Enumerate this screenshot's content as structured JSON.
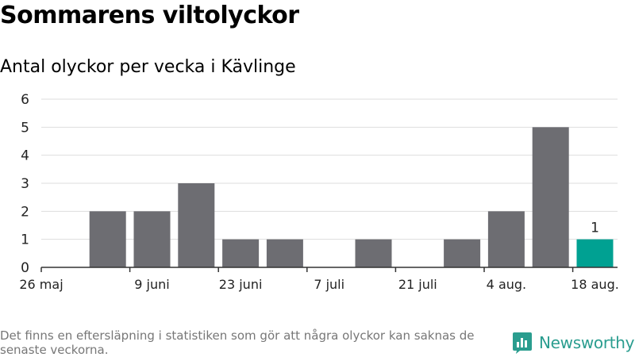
{
  "title": "Sommarens viltolyckor",
  "subtitle": "Antal olyckor per vecka i Kävlinge",
  "footnote": "Det finns en eftersläpning i statistiken som gör att några olyckor kan saknas de senaste veckorna.",
  "brand": {
    "name": "Newsworthy",
    "icon": "newsworthy-logo-icon"
  },
  "colors": {
    "bar": "#6d6d72",
    "highlight": "#00a192",
    "grid": "#dddddd",
    "brand": "#2a9d8f"
  },
  "chart_data": {
    "type": "bar",
    "x": [
      "26 maj",
      "2 juni",
      "9 juni",
      "16 juni",
      "23 juni",
      "30 juni",
      "7 juli",
      "14 juli",
      "21 juli",
      "28 juli",
      "4 aug.",
      "11 aug.",
      "18 aug."
    ],
    "values": [
      0,
      2,
      2,
      3,
      1,
      1,
      0,
      1,
      0,
      1,
      2,
      5,
      1
    ],
    "tick_labels": [
      "26 maj",
      "9 juni",
      "23 juni",
      "7 juli",
      "21 juli",
      "4 aug.",
      "18 aug."
    ],
    "ylim": [
      0,
      6
    ],
    "yticks": [
      0,
      1,
      2,
      3,
      4,
      5,
      6
    ],
    "highlight": {
      "x": "18 aug.",
      "label": "1"
    },
    "grid": true,
    "title": "",
    "xlabel": "",
    "ylabel": ""
  }
}
